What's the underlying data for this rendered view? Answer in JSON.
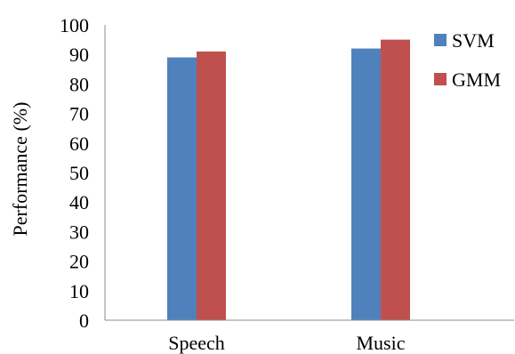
{
  "chart_data": {
    "type": "bar",
    "categories": [
      "Speech",
      "Music"
    ],
    "series": [
      {
        "name": "SVM",
        "values": [
          89,
          92
        ],
        "color": "#4f81bd"
      },
      {
        "name": "GMM",
        "values": [
          91,
          95
        ],
        "color": "#c0504d"
      }
    ],
    "ylabel": "Performance (%)",
    "xlabel": "",
    "ylim": [
      0,
      100
    ],
    "yticks": [
      "0",
      "10",
      "20",
      "30",
      "40",
      "50",
      "60",
      "70",
      "80",
      "90",
      "100"
    ],
    "ytick_values": [
      0,
      10,
      20,
      30,
      40,
      50,
      60,
      70,
      80,
      90,
      100
    ],
    "grid": false,
    "legend_position": "top-right"
  }
}
